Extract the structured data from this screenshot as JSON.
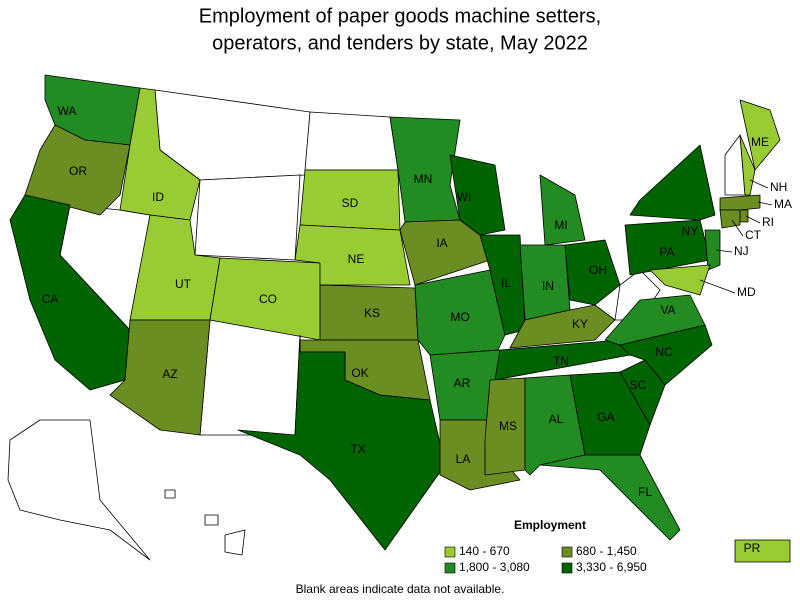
{
  "title": [
    "Employment of paper goods machine setters,",
    "operators, and tenders by state, May 2022"
  ],
  "legend": {
    "title": "Employment",
    "items": [
      {
        "label": "140 - 670",
        "color": "#99cc33"
      },
      {
        "label": "680 - 1,450",
        "color": "#6b8e23"
      },
      {
        "label": "1,800 - 3,080",
        "color": "#228b22"
      },
      {
        "label": "3,330 - 6,950",
        "color": "#006400"
      }
    ]
  },
  "states": [
    {
      "label": "WA",
      "color": "#228b22"
    },
    {
      "label": "OR",
      "color": "#6b8e23"
    },
    {
      "label": "CA",
      "color": "#006400"
    },
    {
      "label": "ID",
      "color": "#99cc33"
    },
    {
      "label": "UT",
      "color": "#99cc33"
    },
    {
      "label": "AZ",
      "color": "#6b8e23"
    },
    {
      "label": "CO",
      "color": "#99cc33"
    },
    {
      "label": "SD",
      "color": "#99cc33"
    },
    {
      "label": "NE",
      "color": "#99cc33"
    },
    {
      "label": "KS",
      "color": "#6b8e23"
    },
    {
      "label": "OK",
      "color": "#6b8e23"
    },
    {
      "label": "TX",
      "color": "#006400"
    },
    {
      "label": "MN",
      "color": "#228b22"
    },
    {
      "label": "IA",
      "color": "#6b8e23"
    },
    {
      "label": "MO",
      "color": "#228b22"
    },
    {
      "label": "AR",
      "color": "#228b22"
    },
    {
      "label": "LA",
      "color": "#6b8e23"
    },
    {
      "label": "WI",
      "color": "#006400"
    },
    {
      "label": "IL",
      "color": "#006400"
    },
    {
      "label": "MI",
      "color": "#228b22"
    },
    {
      "label": "IN",
      "color": "#228b22"
    },
    {
      "label": "OH",
      "color": "#006400"
    },
    {
      "label": "KY",
      "color": "#6b8e23"
    },
    {
      "label": "TN",
      "color": "#006400"
    },
    {
      "label": "MS",
      "color": "#6b8e23"
    },
    {
      "label": "AL",
      "color": "#228b22"
    },
    {
      "label": "GA",
      "color": "#006400"
    },
    {
      "label": "FL",
      "color": "#228b22"
    },
    {
      "label": "SC",
      "color": "#006400"
    },
    {
      "label": "NC",
      "color": "#006400"
    },
    {
      "label": "VA",
      "color": "#228b22"
    },
    {
      "label": "PA",
      "color": "#006400"
    },
    {
      "label": "NY",
      "color": "#006400"
    },
    {
      "label": "ME",
      "color": "#99cc33"
    },
    {
      "label": "NH",
      "color": "#99cc33"
    },
    {
      "label": "MA",
      "color": "#6b8e23"
    },
    {
      "label": "RI",
      "color": "#6b8e23"
    },
    {
      "label": "CT",
      "color": "#6b8e23"
    },
    {
      "label": "NJ",
      "color": "#228b22"
    },
    {
      "label": "MD",
      "color": "#99cc33"
    },
    {
      "label": "PR",
      "color": "#99cc33"
    }
  ],
  "footnote": "Blank areas indicate data not available."
}
